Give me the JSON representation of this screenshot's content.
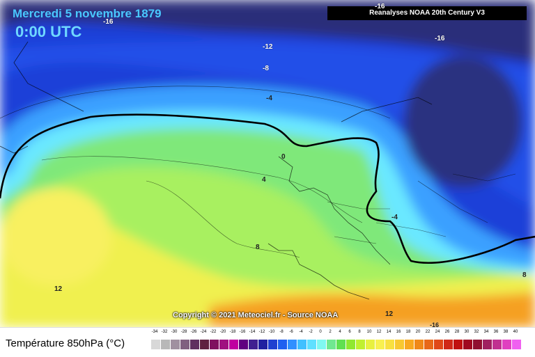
{
  "header": {
    "title": "Mercredi 5 novembre 1879",
    "time": "0:00 UTC",
    "source": "Reanalyses NOAA 20th Century V3"
  },
  "map": {
    "copyright": "Copyright © 2021 Meteociel.fr - Source NOAA",
    "isotherm_labels": [
      "-16",
      "-16",
      "-16",
      "-12",
      "-8",
      "-4",
      "0",
      "4",
      "-4",
      "8",
      "12",
      "8",
      "12",
      "-16"
    ],
    "colors": {
      "very_cold": "#2a2f7a",
      "cold": "#1e4fd8",
      "cool": "#3aa0ff",
      "cyan": "#6ae8ff",
      "green": "#7fe87a",
      "light_green": "#a8f060",
      "yellow": "#f0f050",
      "orange": "#f5a020",
      "contour_zero": "#000000"
    }
  },
  "legend": {
    "title": "Température 850hPa (°C)",
    "ticks": [
      "-34",
      "-32",
      "-30",
      "-28",
      "-26",
      "-24",
      "-22",
      "-20",
      "-18",
      "-16",
      "-14",
      "-12",
      "-10",
      "-8",
      "-6",
      "-4",
      "-2",
      "0",
      "2",
      "4",
      "6",
      "8",
      "10",
      "12",
      "14",
      "16",
      "18",
      "20",
      "22",
      "24",
      "26",
      "28",
      "30",
      "32",
      "34",
      "36",
      "38",
      "40"
    ],
    "colors": [
      "#d8d8d8",
      "#b8b8b8",
      "#a090a0",
      "#806080",
      "#603060",
      "#602040",
      "#801060",
      "#a01080",
      "#c000a0",
      "#600080",
      "#402090",
      "#2020a0",
      "#2040d0",
      "#2060f0",
      "#3090ff",
      "#40c0ff",
      "#60e0ff",
      "#80f8f0",
      "#70e890",
      "#60e050",
      "#90e830",
      "#c0f030",
      "#e8f040",
      "#f8f050",
      "#f8e040",
      "#f8c830",
      "#f8a820",
      "#f08818",
      "#e86818",
      "#e04818",
      "#d02818",
      "#c01010",
      "#a00820",
      "#901030",
      "#a02060",
      "#c03090",
      "#e040c0",
      "#f060f0"
    ]
  }
}
